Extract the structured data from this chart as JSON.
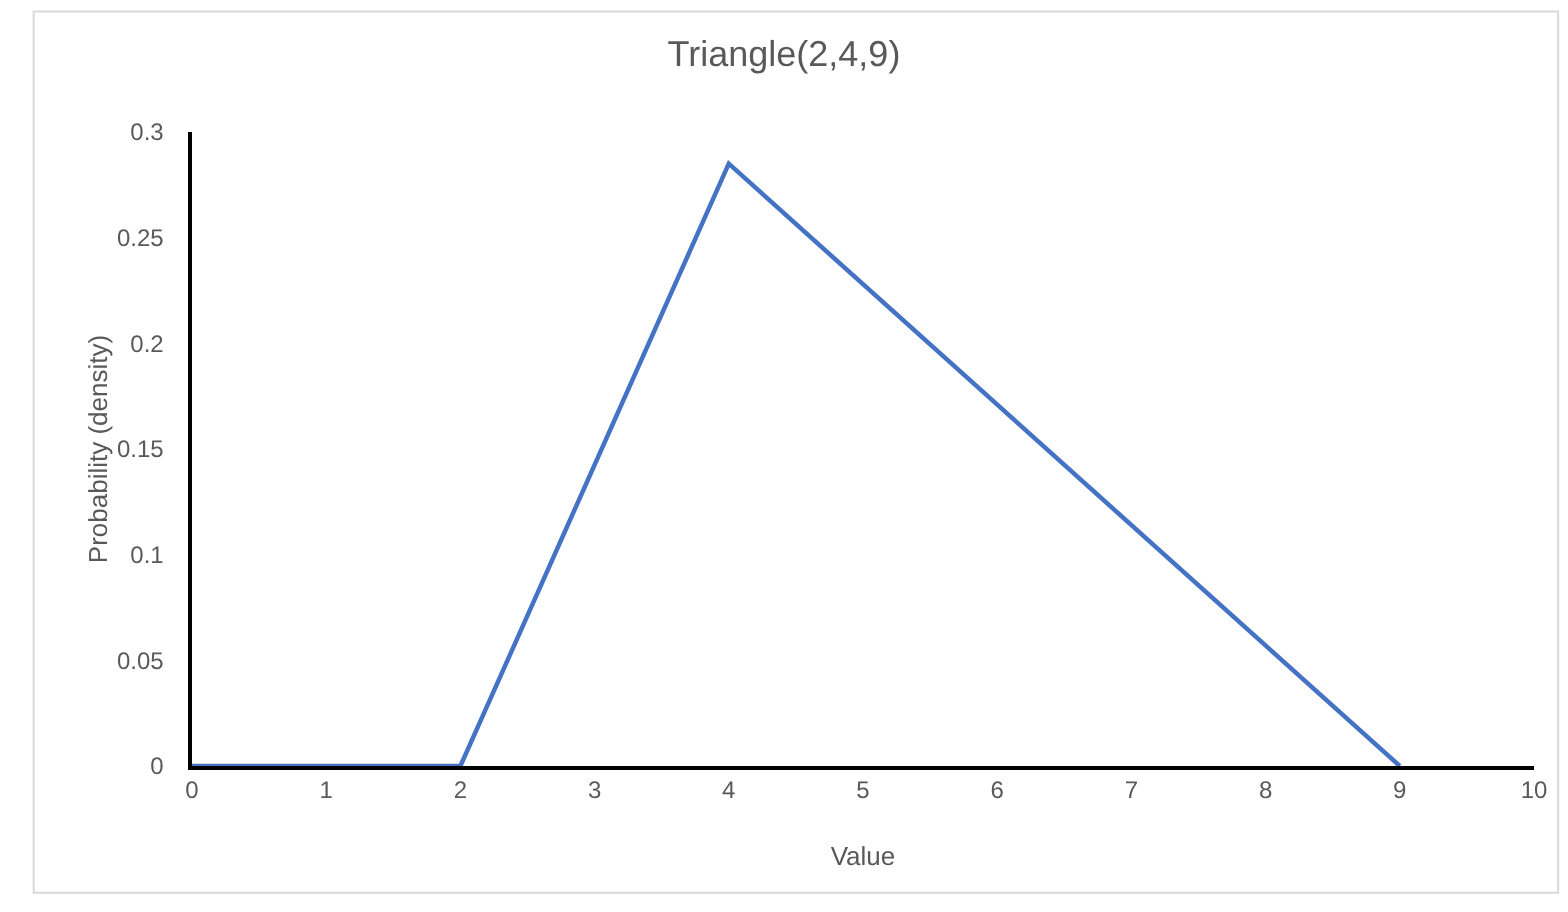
{
  "chart_data": {
    "type": "line",
    "title": "Triangle(2,4,9)",
    "xlabel": "Value",
    "ylabel": "Probability (density)",
    "x": [
      0,
      2,
      4,
      9
    ],
    "series": [
      {
        "color": "#4472c4",
        "values": [
          0,
          0,
          0.285,
          0
        ]
      }
    ],
    "xlim": [
      0,
      10
    ],
    "xticks": [
      0,
      1,
      2,
      3,
      4,
      5,
      6,
      7,
      8,
      9,
      10
    ],
    "ylim": [
      0,
      0.3
    ],
    "yticks": [
      0,
      0.05,
      0.1,
      0.15,
      0.2,
      0.25,
      0.3
    ],
    "grid": false,
    "marker": "none",
    "line_style": "solid"
  }
}
